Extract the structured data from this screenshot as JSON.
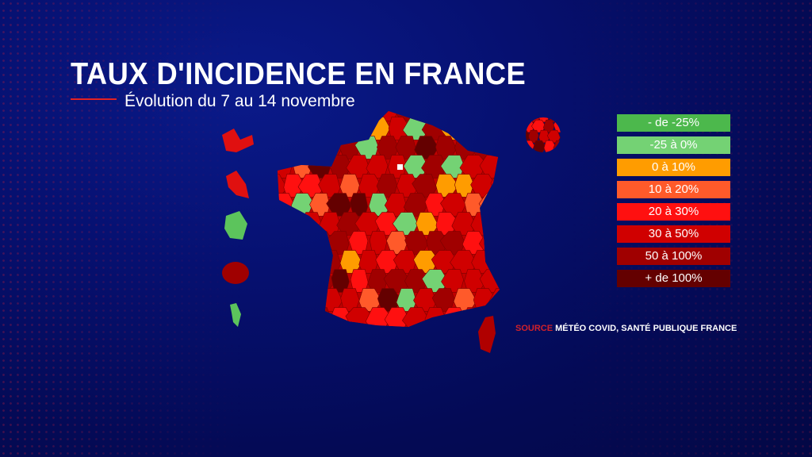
{
  "title": "TAUX D'INCIDENCE EN FRANCE",
  "subtitle": "Évolution du 7 au 14 novembre",
  "legend": [
    {
      "label": "- de -25%",
      "color": "#4cb84c"
    },
    {
      "label": "-25 à 0%",
      "color": "#74d274"
    },
    {
      "label": "0 à 10%",
      "color": "#ff9c00"
    },
    {
      "label": "10 à 20%",
      "color": "#ff5a2a"
    },
    {
      "label": "20 à 30%",
      "color": "#ff1010"
    },
    {
      "label": "30 à 50%",
      "color": "#d00000"
    },
    {
      "label": "50 à 100%",
      "color": "#a00000"
    },
    {
      "label": "+ de 100%",
      "color": "#640000"
    }
  ],
  "source": {
    "label": "SOURCE",
    "text": "MÉTÉO COVID, SANTÉ PUBLIQUE FRANCE"
  }
}
